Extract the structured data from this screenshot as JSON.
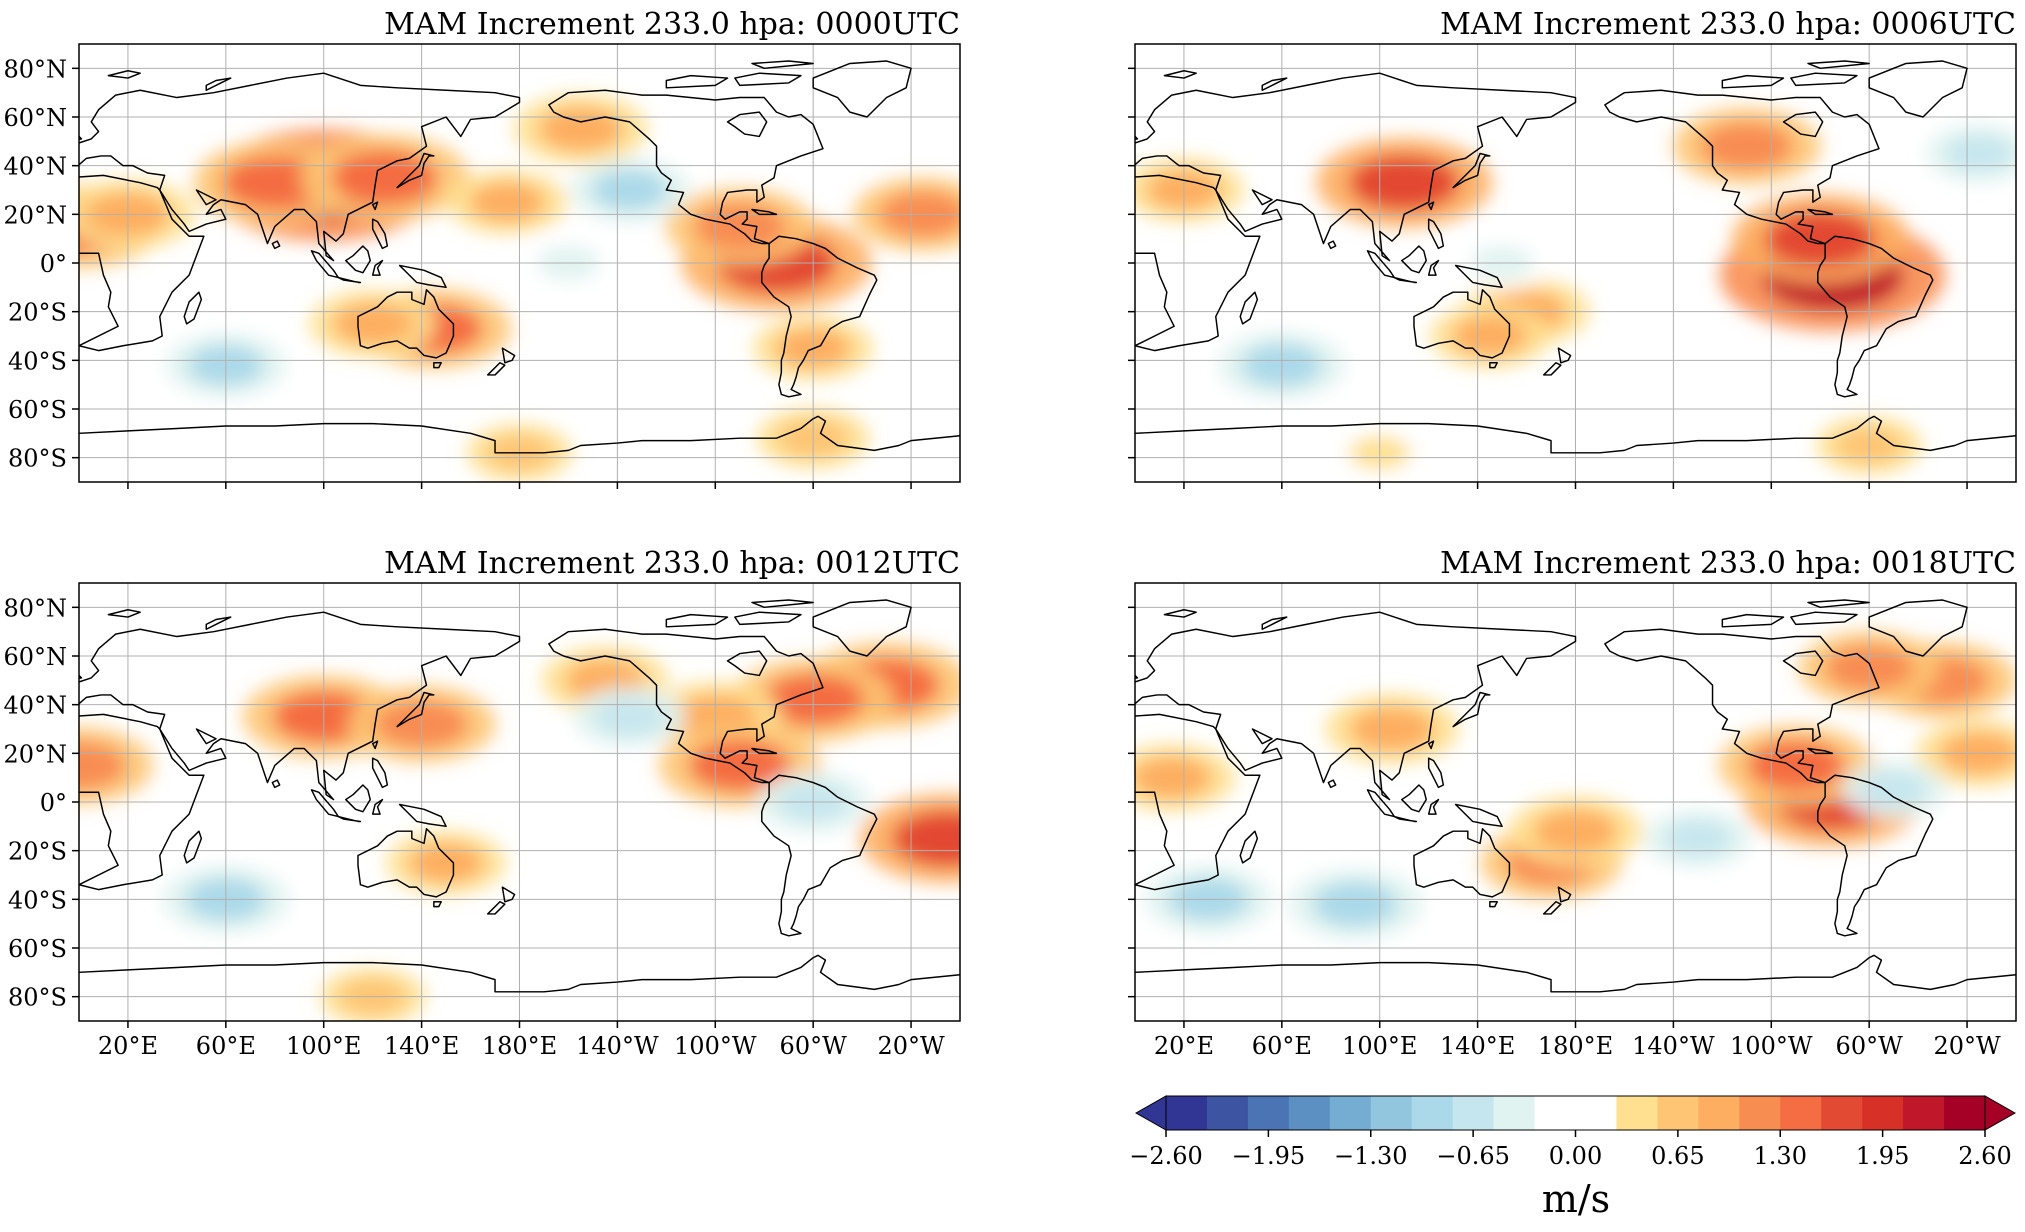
{
  "figure": {
    "panels": [
      {
        "id": "panel-0000utc",
        "title": "MAM Increment 233.0 hpa:  0000UTC",
        "col": 0,
        "row": 0,
        "show_x_labels": false,
        "show_y_labels": true
      },
      {
        "id": "panel-0006utc",
        "title": "MAM Increment 233.0 hpa:  0006UTC",
        "col": 1,
        "row": 0,
        "show_x_labels": false,
        "show_y_labels": false
      },
      {
        "id": "panel-0012utc",
        "title": "MAM Increment 233.0 hpa:  0012UTC",
        "col": 0,
        "row": 1,
        "show_x_labels": true,
        "show_y_labels": true
      },
      {
        "id": "panel-0018utc",
        "title": "MAM Increment 233.0 hpa:  0018UTC",
        "col": 1,
        "row": 1,
        "show_x_labels": true,
        "show_y_labels": false
      }
    ],
    "lat_ticks": [
      {
        "value": 80,
        "label": "80°N"
      },
      {
        "value": 60,
        "label": "60°N"
      },
      {
        "value": 40,
        "label": "40°N"
      },
      {
        "value": 20,
        "label": "20°N"
      },
      {
        "value": 0,
        "label": "0°"
      },
      {
        "value": -20,
        "label": "20°S"
      },
      {
        "value": -40,
        "label": "40°S"
      },
      {
        "value": -60,
        "label": "60°S"
      },
      {
        "value": -80,
        "label": "80°S"
      }
    ],
    "lon_ticks": [
      {
        "value": 20,
        "label": "20°E"
      },
      {
        "value": 60,
        "label": "60°E"
      },
      {
        "value": 100,
        "label": "100°E"
      },
      {
        "value": 140,
        "label": "140°E"
      },
      {
        "value": 180,
        "label": "180°E"
      },
      {
        "value": 220,
        "label": "140°W"
      },
      {
        "value": 260,
        "label": "100°W"
      },
      {
        "value": 300,
        "label": "60°W"
      },
      {
        "value": 340,
        "label": "20°W"
      }
    ],
    "lon_range": [
      0,
      360
    ],
    "lat_range": [
      -90,
      90
    ],
    "colorbar": {
      "unit": "m/s",
      "min": -2.6,
      "max": 2.6,
      "tick_labels": [
        "−2.60",
        "−1.95",
        "−1.30",
        "−0.65",
        "0.00",
        "0.65",
        "1.30",
        "1.95",
        "2.60"
      ],
      "colors": [
        "#313695",
        "#3d54a3",
        "#4a74b4",
        "#5c90c2",
        "#74add1",
        "#92c5de",
        "#abd9e9",
        "#c6e6ef",
        "#e0f3f0",
        "#ffffff",
        "#ffffff",
        "#fee090",
        "#fdc574",
        "#fdae61",
        "#f88d52",
        "#f46d43",
        "#e34a33",
        "#d73027",
        "#c0172a",
        "#a50026"
      ],
      "cmap": "RdYlBu_r"
    }
  },
  "chart_data": [
    {
      "type": "heatmap",
      "title": "MAM Increment 233.0 hpa:  0000UTC",
      "x_axis": "longitude",
      "y_axis": "latitude",
      "features": [
        {
          "lon": 100,
          "lat": 32,
          "value": 2.3
        },
        {
          "lon": 80,
          "lat": 33,
          "value": 1.4
        },
        {
          "lon": 125,
          "lat": 35,
          "value": 1.5
        },
        {
          "lon": 0,
          "lat": 15,
          "value": 1.4
        },
        {
          "lon": 20,
          "lat": 20,
          "value": 1.0
        },
        {
          "lon": 285,
          "lat": 0,
          "value": 1.8
        },
        {
          "lon": 270,
          "lat": 15,
          "value": 1.2
        },
        {
          "lon": 205,
          "lat": 55,
          "value": 1.0
        },
        {
          "lon": 175,
          "lat": 25,
          "value": 0.8
        },
        {
          "lon": 145,
          "lat": -27,
          "value": 1.3
        },
        {
          "lon": 120,
          "lat": -25,
          "value": 0.9
        },
        {
          "lon": 345,
          "lat": 20,
          "value": 1.1
        },
        {
          "lon": 300,
          "lat": -35,
          "value": 0.8
        },
        {
          "lon": 225,
          "lat": 30,
          "value": -0.8
        },
        {
          "lon": 60,
          "lat": -42,
          "value": -0.8
        },
        {
          "lon": 200,
          "lat": 0,
          "value": -0.5
        },
        {
          "lon": 300,
          "lat": -72,
          "value": 0.7
        },
        {
          "lon": 180,
          "lat": -78,
          "value": 0.6
        }
      ]
    },
    {
      "type": "heatmap",
      "title": "MAM Increment 233.0 hpa:  0006UTC",
      "x_axis": "longitude",
      "y_axis": "latitude",
      "features": [
        {
          "lon": 285,
          "lat": -5,
          "value": 2.3
        },
        {
          "lon": 280,
          "lat": 10,
          "value": 1.6
        },
        {
          "lon": 110,
          "lat": 33,
          "value": 1.6
        },
        {
          "lon": 250,
          "lat": 48,
          "value": 1.2
        },
        {
          "lon": 160,
          "lat": -20,
          "value": 0.9
        },
        {
          "lon": 145,
          "lat": -30,
          "value": 0.8
        },
        {
          "lon": 20,
          "lat": 30,
          "value": 0.8
        },
        {
          "lon": 60,
          "lat": -42,
          "value": -0.9
        },
        {
          "lon": 345,
          "lat": 45,
          "value": -0.6
        },
        {
          "lon": 150,
          "lat": 0,
          "value": -0.5
        },
        {
          "lon": 300,
          "lat": -75,
          "value": 0.6
        },
        {
          "lon": 100,
          "lat": -78,
          "value": 0.5
        }
      ]
    },
    {
      "type": "heatmap",
      "title": "MAM Increment 233.0 hpa:  0012UTC",
      "x_axis": "longitude",
      "y_axis": "latitude",
      "features": [
        {
          "lon": 330,
          "lat": 48,
          "value": 1.5
        },
        {
          "lon": 300,
          "lat": 42,
          "value": 1.4
        },
        {
          "lon": 260,
          "lat": 35,
          "value": 1.0
        },
        {
          "lon": 270,
          "lat": 15,
          "value": 1.4
        },
        {
          "lon": 100,
          "lat": 35,
          "value": 1.4
        },
        {
          "lon": 140,
          "lat": 32,
          "value": 1.2
        },
        {
          "lon": 0,
          "lat": 15,
          "value": 1.2
        },
        {
          "lon": 355,
          "lat": -15,
          "value": 1.6
        },
        {
          "lon": 150,
          "lat": -25,
          "value": 0.8
        },
        {
          "lon": 215,
          "lat": 50,
          "value": 0.9
        },
        {
          "lon": 60,
          "lat": -40,
          "value": -0.9
        },
        {
          "lon": 225,
          "lat": 35,
          "value": -0.7
        },
        {
          "lon": 300,
          "lat": 0,
          "value": -0.7
        },
        {
          "lon": 120,
          "lat": -80,
          "value": 0.6
        }
      ]
    },
    {
      "type": "heatmap",
      "title": "MAM Increment 233.0 hpa:  0018UTC",
      "x_axis": "longitude",
      "y_axis": "latitude",
      "features": [
        {
          "lon": 285,
          "lat": 0,
          "value": 1.6
        },
        {
          "lon": 270,
          "lat": 15,
          "value": 1.3
        },
        {
          "lon": 330,
          "lat": 50,
          "value": 1.2
        },
        {
          "lon": 300,
          "lat": 55,
          "value": 1.1
        },
        {
          "lon": 105,
          "lat": 30,
          "value": 1.0
        },
        {
          "lon": 170,
          "lat": -25,
          "value": 1.1
        },
        {
          "lon": 180,
          "lat": -12,
          "value": 1.0
        },
        {
          "lon": 15,
          "lat": 10,
          "value": 0.9
        },
        {
          "lon": 345,
          "lat": 20,
          "value": 0.9
        },
        {
          "lon": 90,
          "lat": -42,
          "value": -1.0
        },
        {
          "lon": 30,
          "lat": -40,
          "value": -0.9
        },
        {
          "lon": 310,
          "lat": 5,
          "value": -0.6
        },
        {
          "lon": 230,
          "lat": -15,
          "value": -0.6
        }
      ]
    }
  ]
}
